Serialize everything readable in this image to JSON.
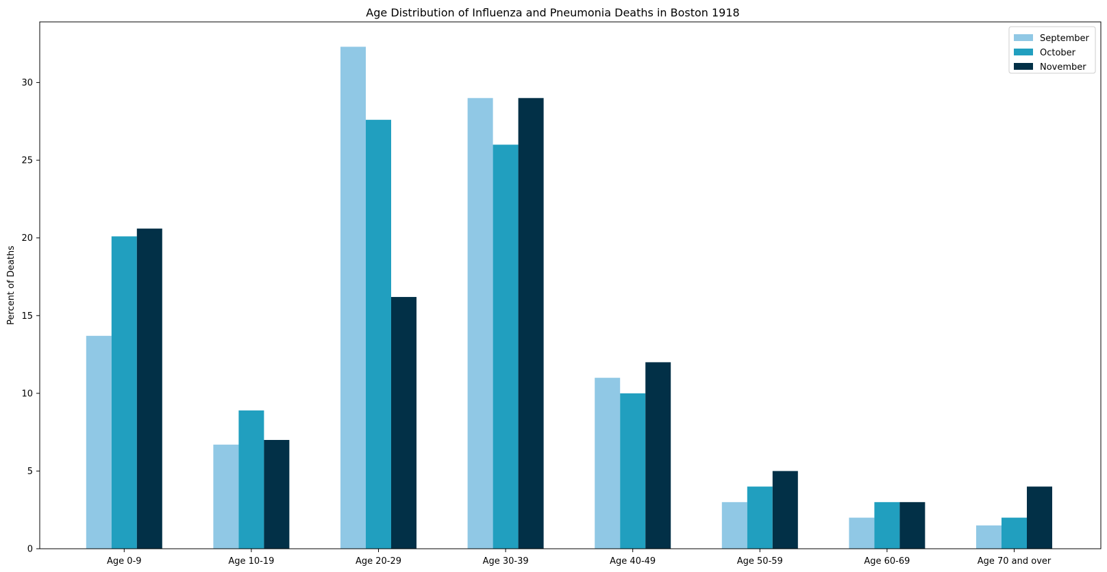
{
  "chart_data": {
    "type": "bar",
    "title": "Age Distribution of Influenza and Pneumonia Deaths in Boston 1918",
    "xlabel": "",
    "ylabel": "Percent of Deaths",
    "categories": [
      "Age 0-9",
      "Age 10-19",
      "Age 20-29",
      "Age 30-39",
      "Age 40-49",
      "Age 50-59",
      "Age 60-69",
      "Age 70 and over"
    ],
    "series": [
      {
        "name": "September",
        "color": "#90c8e5",
        "values": [
          13.7,
          6.7,
          32.3,
          29.0,
          11.0,
          3.0,
          2.0,
          1.5
        ]
      },
      {
        "name": "October",
        "color": "#219fbf",
        "values": [
          20.1,
          8.9,
          27.6,
          26.0,
          10.0,
          4.0,
          3.0,
          2.0
        ]
      },
      {
        "name": "November",
        "color": "#023047",
        "values": [
          20.6,
          7.0,
          16.2,
          29.0,
          12.0,
          5.0,
          3.0,
          4.0
        ]
      }
    ],
    "ylim": [
      0,
      33.9
    ],
    "yticks": [
      0,
      5,
      10,
      15,
      20,
      25,
      30
    ],
    "legend_position": "top-right",
    "grid": false
  }
}
